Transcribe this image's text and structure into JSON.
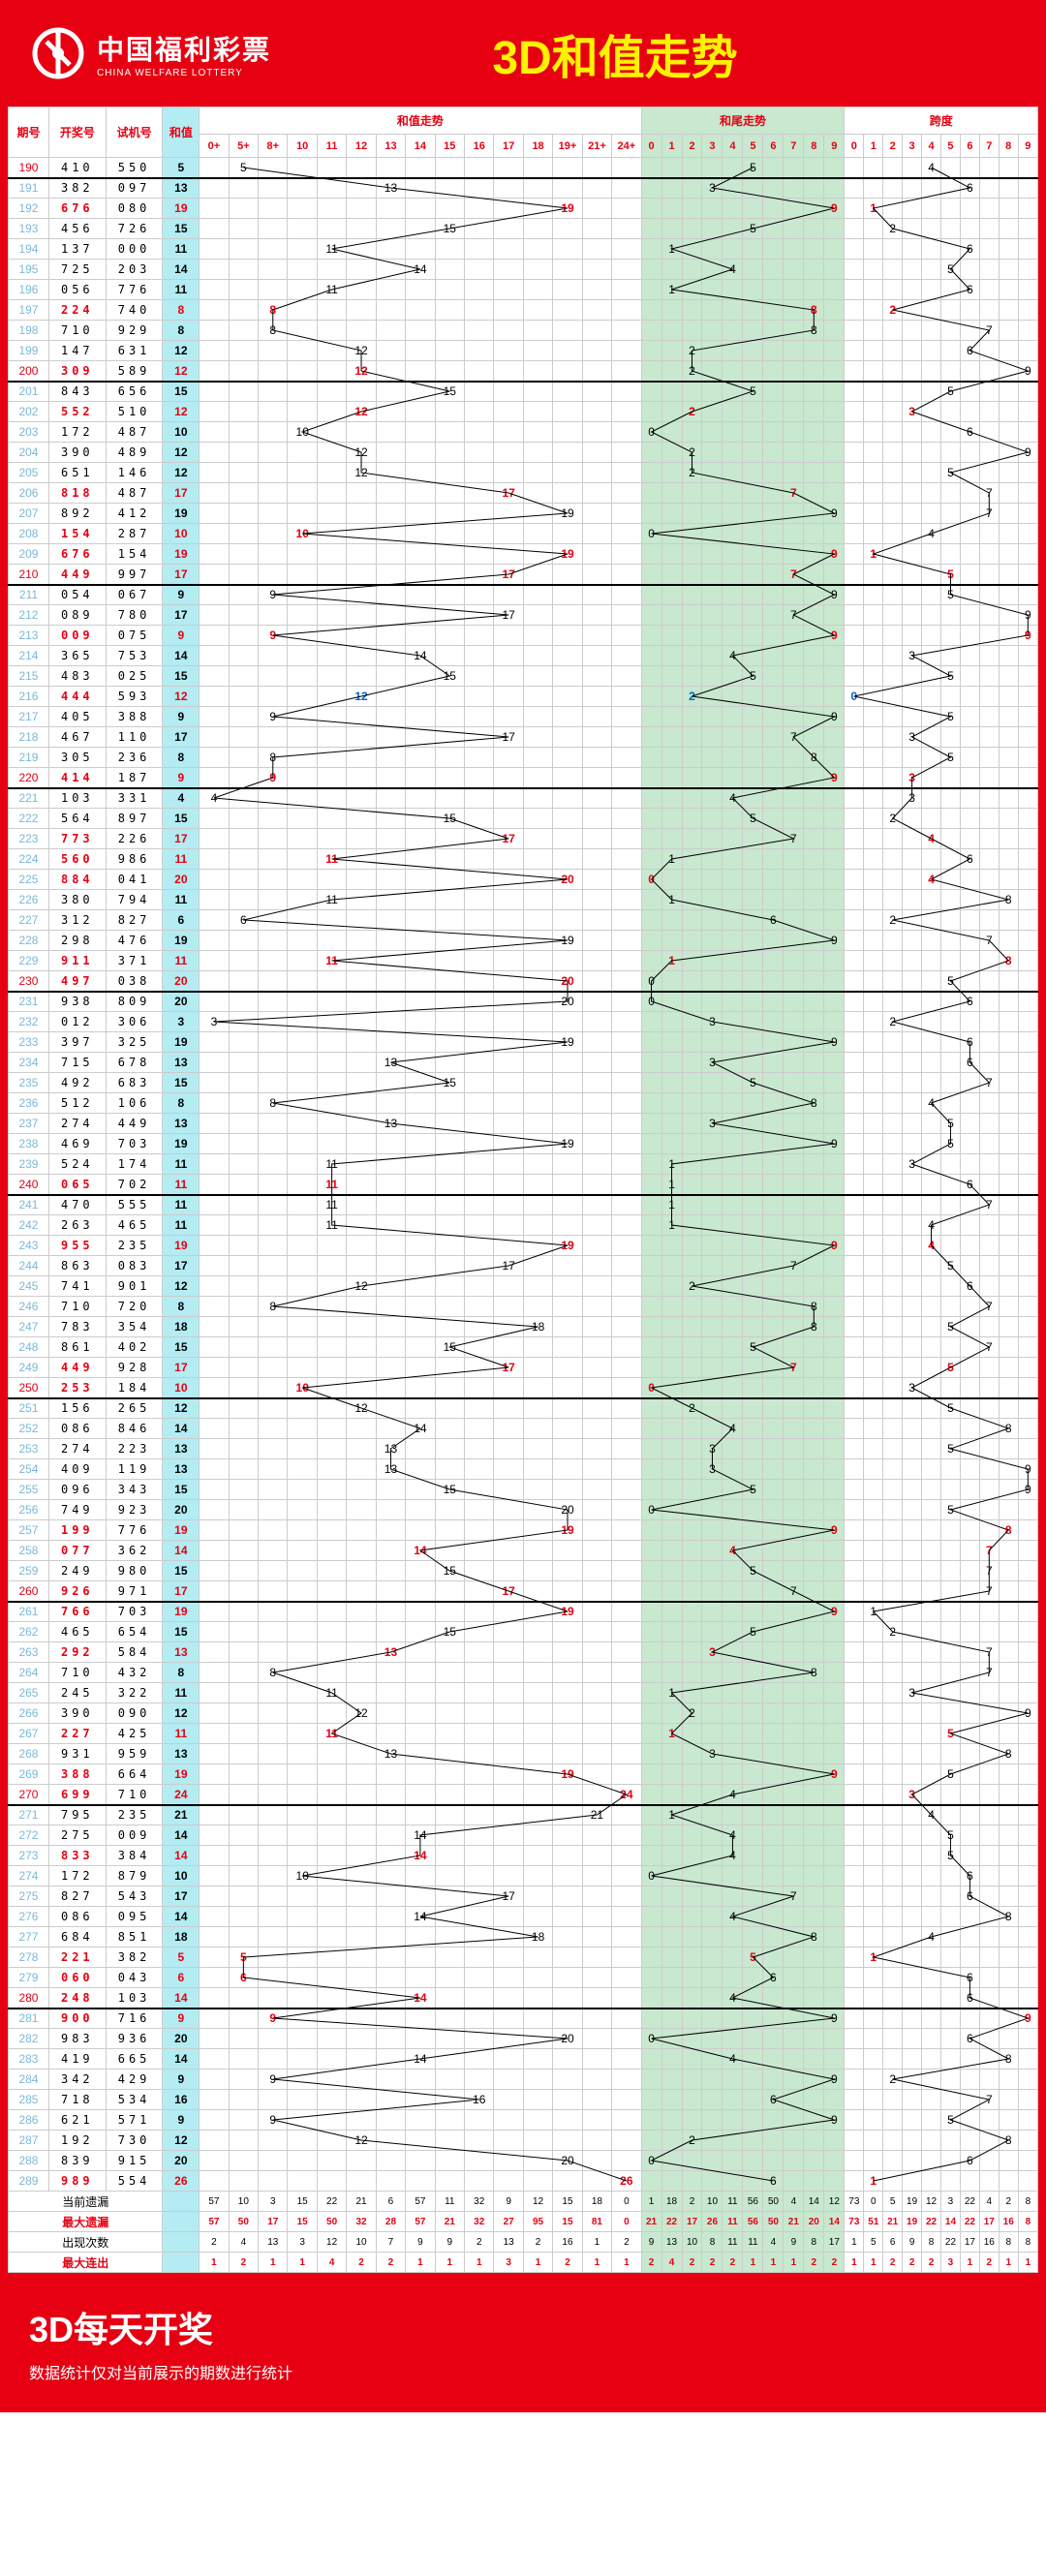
{
  "header": {
    "cn": "中国福利彩票",
    "en": "CHINA WELFARE LOTTERY",
    "title": "3D和值走势"
  },
  "cols": {
    "qh": "期号",
    "kj": "开奖号",
    "sj": "试机号",
    "hz": "和值",
    "trend": "和值走势",
    "tail": "和尾走势",
    "span": "跨度"
  },
  "trend_labels": [
    "0+",
    "5+",
    "8+",
    "10",
    "11",
    "12",
    "13",
    "14",
    "15",
    "16",
    "17",
    "18",
    "19+",
    "21+",
    "24+"
  ],
  "tail_labels": [
    "0",
    "1",
    "2",
    "3",
    "4",
    "5",
    "6",
    "7",
    "8",
    "9"
  ],
  "span_labels": [
    "0",
    "1",
    "2",
    "3",
    "4",
    "5",
    "6",
    "7",
    "8",
    "9"
  ],
  "rows": [
    {
      "q": "190",
      "k": "410",
      "s": "550",
      "h": 5,
      "t": 5,
      "p": 4,
      "hr": 0,
      "tr": 0,
      "pr": 0
    },
    {
      "q": "191",
      "k": "382",
      "s": "097",
      "h": 13,
      "t": 3,
      "p": 6,
      "hr": 0,
      "tr": 0,
      "pr": 0
    },
    {
      "q": "192",
      "k": "676",
      "s": "080",
      "h": 19,
      "t": 9,
      "p": 1,
      "hr": 1,
      "tr": 1,
      "pr": 1
    },
    {
      "q": "193",
      "k": "456",
      "s": "726",
      "h": 15,
      "t": 5,
      "p": 2,
      "hr": 0,
      "tr": 0,
      "pr": 0
    },
    {
      "q": "194",
      "k": "137",
      "s": "000",
      "h": 11,
      "t": 1,
      "p": 6,
      "hr": 0,
      "tr": 0,
      "pr": 0
    },
    {
      "q": "195",
      "k": "725",
      "s": "203",
      "h": 14,
      "t": 4,
      "p": 5,
      "hr": 0,
      "tr": 0,
      "pr": 0
    },
    {
      "q": "196",
      "k": "056",
      "s": "776",
      "h": 11,
      "t": 1,
      "p": 6,
      "hr": 0,
      "tr": 0,
      "pr": 0
    },
    {
      "q": "197",
      "k": "224",
      "s": "740",
      "h": 8,
      "t": 8,
      "p": 2,
      "hr": 1,
      "tr": 1,
      "pr": 1
    },
    {
      "q": "198",
      "k": "710",
      "s": "929",
      "h": 8,
      "t": 8,
      "p": 7,
      "hr": 0,
      "tr": 0,
      "pr": 0
    },
    {
      "q": "199",
      "k": "147",
      "s": "631",
      "h": 12,
      "t": 2,
      "p": 6,
      "hr": 0,
      "tr": 0,
      "pr": 0
    },
    {
      "q": "200",
      "k": "309",
      "s": "589",
      "h": 12,
      "t": 2,
      "p": 9,
      "hr": 1,
      "tr": 0,
      "pr": 0
    },
    {
      "q": "201",
      "k": "843",
      "s": "656",
      "h": 15,
      "t": 5,
      "p": 5,
      "hr": 0,
      "tr": 0,
      "pr": 0
    },
    {
      "q": "202",
      "k": "552",
      "s": "510",
      "h": 12,
      "t": 2,
      "p": 3,
      "hr": 1,
      "tr": 1,
      "pr": 1
    },
    {
      "q": "203",
      "k": "172",
      "s": "487",
      "h": 10,
      "t": 0,
      "p": 6,
      "hr": 0,
      "tr": 0,
      "pr": 0
    },
    {
      "q": "204",
      "k": "390",
      "s": "489",
      "h": 12,
      "t": 2,
      "p": 9,
      "hr": 0,
      "tr": 0,
      "pr": 0
    },
    {
      "q": "205",
      "k": "651",
      "s": "146",
      "h": 12,
      "t": 2,
      "p": 5,
      "hr": 0,
      "tr": 0,
      "pr": 0
    },
    {
      "q": "206",
      "k": "818",
      "s": "487",
      "h": 17,
      "t": 7,
      "p": 7,
      "hr": 1,
      "tr": 1,
      "pr": 0
    },
    {
      "q": "207",
      "k": "892",
      "s": "412",
      "h": 19,
      "t": 9,
      "p": 7,
      "hr": 0,
      "tr": 0,
      "pr": 0
    },
    {
      "q": "208",
      "k": "154",
      "s": "287",
      "h": 10,
      "t": 0,
      "p": 4,
      "hr": 1,
      "tr": 0,
      "pr": 0
    },
    {
      "q": "209",
      "k": "676",
      "s": "154",
      "h": 19,
      "t": 9,
      "p": 1,
      "hr": 1,
      "tr": 1,
      "pr": 1
    },
    {
      "q": "210",
      "k": "449",
      "s": "997",
      "h": 17,
      "t": 7,
      "p": 5,
      "hr": 1,
      "tr": 1,
      "pr": 1
    },
    {
      "q": "211",
      "k": "054",
      "s": "067",
      "h": 9,
      "t": 9,
      "p": 5,
      "hr": 0,
      "tr": 0,
      "pr": 0
    },
    {
      "q": "212",
      "k": "089",
      "s": "780",
      "h": 17,
      "t": 7,
      "p": 9,
      "hr": 0,
      "tr": 0,
      "pr": 0
    },
    {
      "q": "213",
      "k": "009",
      "s": "075",
      "h": 9,
      "t": 9,
      "p": 9,
      "hr": 1,
      "tr": 1,
      "pr": 1
    },
    {
      "q": "214",
      "k": "365",
      "s": "753",
      "h": 14,
      "t": 4,
      "p": 3,
      "hr": 0,
      "tr": 0,
      "pr": 0
    },
    {
      "q": "215",
      "k": "483",
      "s": "025",
      "h": 15,
      "t": 5,
      "p": 5,
      "hr": 0,
      "tr": 0,
      "pr": 0
    },
    {
      "q": "216",
      "k": "444",
      "s": "593",
      "h": 12,
      "t": 2,
      "p": 0,
      "hr": 2,
      "tr": 2,
      "pr": 2
    },
    {
      "q": "217",
      "k": "405",
      "s": "388",
      "h": 9,
      "t": 9,
      "p": 5,
      "hr": 0,
      "tr": 0,
      "pr": 0
    },
    {
      "q": "218",
      "k": "467",
      "s": "110",
      "h": 17,
      "t": 7,
      "p": 3,
      "hr": 0,
      "tr": 0,
      "pr": 0
    },
    {
      "q": "219",
      "k": "305",
      "s": "236",
      "h": 8,
      "t": 8,
      "p": 5,
      "hr": 0,
      "tr": 0,
      "pr": 0
    },
    {
      "q": "220",
      "k": "414",
      "s": "187",
      "h": 9,
      "t": 9,
      "p": 3,
      "hr": 1,
      "tr": 1,
      "pr": 1
    },
    {
      "q": "221",
      "k": "103",
      "s": "331",
      "h": 4,
      "t": 4,
      "p": 3,
      "hr": 0,
      "tr": 0,
      "pr": 0
    },
    {
      "q": "222",
      "k": "564",
      "s": "897",
      "h": 15,
      "t": 5,
      "p": 2,
      "hr": 0,
      "tr": 0,
      "pr": 0
    },
    {
      "q": "223",
      "k": "773",
      "s": "226",
      "h": 17,
      "t": 7,
      "p": 4,
      "hr": 1,
      "tr": 0,
      "pr": 1
    },
    {
      "q": "224",
      "k": "560",
      "s": "986",
      "h": 11,
      "t": 1,
      "p": 6,
      "hr": 1,
      "tr": 0,
      "pr": 0
    },
    {
      "q": "225",
      "k": "884",
      "s": "041",
      "h": 20,
      "t": 0,
      "p": 4,
      "hr": 1,
      "tr": 1,
      "pr": 1
    },
    {
      "q": "226",
      "k": "380",
      "s": "794",
      "h": 11,
      "t": 1,
      "p": 8,
      "hr": 0,
      "tr": 0,
      "pr": 0
    },
    {
      "q": "227",
      "k": "312",
      "s": "827",
      "h": 6,
      "t": 6,
      "p": 2,
      "hr": 0,
      "tr": 0,
      "pr": 0
    },
    {
      "q": "228",
      "k": "298",
      "s": "476",
      "h": 19,
      "t": 9,
      "p": 7,
      "hr": 0,
      "tr": 0,
      "pr": 0
    },
    {
      "q": "229",
      "k": "911",
      "s": "371",
      "h": 11,
      "t": 1,
      "p": 8,
      "hr": 1,
      "tr": 1,
      "pr": 1
    },
    {
      "q": "230",
      "k": "497",
      "s": "038",
      "h": 20,
      "t": 0,
      "p": 5,
      "hr": 1,
      "tr": 0,
      "pr": 0
    },
    {
      "q": "231",
      "k": "938",
      "s": "809",
      "h": 20,
      "t": 0,
      "p": 6,
      "hr": 0,
      "tr": 0,
      "pr": 0
    },
    {
      "q": "232",
      "k": "012",
      "s": "306",
      "h": 3,
      "t": 3,
      "p": 2,
      "hr": 0,
      "tr": 0,
      "pr": 0
    },
    {
      "q": "233",
      "k": "397",
      "s": "325",
      "h": 19,
      "t": 9,
      "p": 6,
      "hr": 0,
      "tr": 0,
      "pr": 0
    },
    {
      "q": "234",
      "k": "715",
      "s": "678",
      "h": 13,
      "t": 3,
      "p": 6,
      "hr": 0,
      "tr": 0,
      "pr": 0
    },
    {
      "q": "235",
      "k": "492",
      "s": "683",
      "h": 15,
      "t": 5,
      "p": 7,
      "hr": 0,
      "tr": 0,
      "pr": 0
    },
    {
      "q": "236",
      "k": "512",
      "s": "106",
      "h": 8,
      "t": 8,
      "p": 4,
      "hr": 0,
      "tr": 0,
      "pr": 0
    },
    {
      "q": "237",
      "k": "274",
      "s": "449",
      "h": 13,
      "t": 3,
      "p": 5,
      "hr": 0,
      "tr": 0,
      "pr": 0
    },
    {
      "q": "238",
      "k": "469",
      "s": "703",
      "h": 19,
      "t": 9,
      "p": 5,
      "hr": 0,
      "tr": 0,
      "pr": 0
    },
    {
      "q": "239",
      "k": "524",
      "s": "174",
      "h": 11,
      "t": 1,
      "p": 3,
      "hr": 0,
      "tr": 0,
      "pr": 0
    },
    {
      "q": "240",
      "k": "065",
      "s": "702",
      "h": 11,
      "t": 1,
      "p": 6,
      "hr": 1,
      "tr": 0,
      "pr": 0
    },
    {
      "q": "241",
      "k": "470",
      "s": "555",
      "h": 11,
      "t": 1,
      "p": 7,
      "hr": 0,
      "tr": 0,
      "pr": 0
    },
    {
      "q": "242",
      "k": "263",
      "s": "465",
      "h": 11,
      "t": 1,
      "p": 4,
      "hr": 0,
      "tr": 0,
      "pr": 0
    },
    {
      "q": "243",
      "k": "955",
      "s": "235",
      "h": 19,
      "t": 9,
      "p": 4,
      "hr": 1,
      "tr": 1,
      "pr": 1
    },
    {
      "q": "244",
      "k": "863",
      "s": "083",
      "h": 17,
      "t": 7,
      "p": 5,
      "hr": 0,
      "tr": 0,
      "pr": 0
    },
    {
      "q": "245",
      "k": "741",
      "s": "901",
      "h": 12,
      "t": 2,
      "p": 6,
      "hr": 0,
      "tr": 0,
      "pr": 0
    },
    {
      "q": "246",
      "k": "710",
      "s": "720",
      "h": 8,
      "t": 8,
      "p": 7,
      "hr": 0,
      "tr": 0,
      "pr": 0
    },
    {
      "q": "247",
      "k": "783",
      "s": "354",
      "h": 18,
      "t": 8,
      "p": 5,
      "hr": 0,
      "tr": 0,
      "pr": 0
    },
    {
      "q": "248",
      "k": "861",
      "s": "402",
      "h": 15,
      "t": 5,
      "p": 7,
      "hr": 0,
      "tr": 0,
      "pr": 0
    },
    {
      "q": "249",
      "k": "449",
      "s": "928",
      "h": 17,
      "t": 7,
      "p": 5,
      "hr": 1,
      "tr": 1,
      "pr": 1
    },
    {
      "q": "250",
      "k": "253",
      "s": "184",
      "h": 10,
      "t": 0,
      "p": 3,
      "hr": 1,
      "tr": 1,
      "pr": 0
    },
    {
      "q": "251",
      "k": "156",
      "s": "265",
      "h": 12,
      "t": 2,
      "p": 5,
      "hr": 0,
      "tr": 0,
      "pr": 0
    },
    {
      "q": "252",
      "k": "086",
      "s": "846",
      "h": 14,
      "t": 4,
      "p": 8,
      "hr": 0,
      "tr": 0,
      "pr": 0
    },
    {
      "q": "253",
      "k": "274",
      "s": "223",
      "h": 13,
      "t": 3,
      "p": 5,
      "hr": 0,
      "tr": 0,
      "pr": 0
    },
    {
      "q": "254",
      "k": "409",
      "s": "119",
      "h": 13,
      "t": 3,
      "p": 9,
      "hr": 0,
      "tr": 0,
      "pr": 0
    },
    {
      "q": "255",
      "k": "096",
      "s": "343",
      "h": 15,
      "t": 5,
      "p": 9,
      "hr": 0,
      "tr": 0,
      "pr": 0
    },
    {
      "q": "256",
      "k": "749",
      "s": "923",
      "h": 20,
      "t": 0,
      "p": 5,
      "hr": 0,
      "tr": 0,
      "pr": 0
    },
    {
      "q": "257",
      "k": "199",
      "s": "776",
      "h": 19,
      "t": 9,
      "p": 8,
      "hr": 1,
      "tr": 1,
      "pr": 1
    },
    {
      "q": "258",
      "k": "077",
      "s": "362",
      "h": 14,
      "t": 4,
      "p": 7,
      "hr": 1,
      "tr": 1,
      "pr": 1
    },
    {
      "q": "259",
      "k": "249",
      "s": "980",
      "h": 15,
      "t": 5,
      "p": 7,
      "hr": 0,
      "tr": 0,
      "pr": 0
    },
    {
      "q": "260",
      "k": "926",
      "s": "971",
      "h": 17,
      "t": 7,
      "p": 7,
      "hr": 1,
      "tr": 0,
      "pr": 0
    },
    {
      "q": "261",
      "k": "766",
      "s": "703",
      "h": 19,
      "t": 9,
      "p": 1,
      "hr": 1,
      "tr": 1,
      "pr": 0
    },
    {
      "q": "262",
      "k": "465",
      "s": "654",
      "h": 15,
      "t": 5,
      "p": 2,
      "hr": 0,
      "tr": 0,
      "pr": 0
    },
    {
      "q": "263",
      "k": "292",
      "s": "584",
      "h": 13,
      "t": 3,
      "p": 7,
      "hr": 1,
      "tr": 1,
      "pr": 0
    },
    {
      "q": "264",
      "k": "710",
      "s": "432",
      "h": 8,
      "t": 8,
      "p": 7,
      "hr": 0,
      "tr": 0,
      "pr": 0
    },
    {
      "q": "265",
      "k": "245",
      "s": "322",
      "h": 11,
      "t": 1,
      "p": 3,
      "hr": 0,
      "tr": 0,
      "pr": 0
    },
    {
      "q": "266",
      "k": "390",
      "s": "090",
      "h": 12,
      "t": 2,
      "p": 9,
      "hr": 0,
      "tr": 0,
      "pr": 0
    },
    {
      "q": "267",
      "k": "227",
      "s": "425",
      "h": 11,
      "t": 1,
      "p": 5,
      "hr": 1,
      "tr": 1,
      "pr": 1
    },
    {
      "q": "268",
      "k": "931",
      "s": "959",
      "h": 13,
      "t": 3,
      "p": 8,
      "hr": 0,
      "tr": 0,
      "pr": 0
    },
    {
      "q": "269",
      "k": "388",
      "s": "664",
      "h": 19,
      "t": 9,
      "p": 5,
      "hr": 1,
      "tr": 1,
      "pr": 0
    },
    {
      "q": "270",
      "k": "699",
      "s": "710",
      "h": 24,
      "t": 4,
      "p": 3,
      "hr": 1,
      "tr": 0,
      "pr": 1
    },
    {
      "q": "271",
      "k": "795",
      "s": "235",
      "h": 21,
      "t": 1,
      "p": 4,
      "hr": 0,
      "tr": 0,
      "pr": 0
    },
    {
      "q": "272",
      "k": "275",
      "s": "009",
      "h": 14,
      "t": 4,
      "p": 5,
      "hr": 0,
      "tr": 0,
      "pr": 0
    },
    {
      "q": "273",
      "k": "833",
      "s": "384",
      "h": 14,
      "t": 4,
      "p": 5,
      "hr": 1,
      "tr": 0,
      "pr": 0
    },
    {
      "q": "274",
      "k": "172",
      "s": "879",
      "h": 10,
      "t": 0,
      "p": 6,
      "hr": 0,
      "tr": 0,
      "pr": 0
    },
    {
      "q": "275",
      "k": "827",
      "s": "543",
      "h": 17,
      "t": 7,
      "p": 6,
      "hr": 0,
      "tr": 0,
      "pr": 0
    },
    {
      "q": "276",
      "k": "086",
      "s": "095",
      "h": 14,
      "t": 4,
      "p": 8,
      "hr": 0,
      "tr": 0,
      "pr": 0
    },
    {
      "q": "277",
      "k": "684",
      "s": "851",
      "h": 18,
      "t": 8,
      "p": 4,
      "hr": 0,
      "tr": 0,
      "pr": 0
    },
    {
      "q": "278",
      "k": "221",
      "s": "382",
      "h": 5,
      "t": 5,
      "p": 1,
      "hr": 1,
      "tr": 1,
      "pr": 1
    },
    {
      "q": "279",
      "k": "060",
      "s": "043",
      "h": 6,
      "t": 6,
      "p": 6,
      "hr": 1,
      "tr": 0,
      "pr": 0
    },
    {
      "q": "280",
      "k": "248",
      "s": "103",
      "h": 14,
      "t": 4,
      "p": 6,
      "hr": 1,
      "tr": 0,
      "pr": 0
    },
    {
      "q": "281",
      "k": "900",
      "s": "716",
      "h": 9,
      "t": 9,
      "p": 9,
      "hr": 1,
      "tr": 0,
      "pr": 1
    },
    {
      "q": "282",
      "k": "983",
      "s": "936",
      "h": 20,
      "t": 0,
      "p": 6,
      "hr": 0,
      "tr": 0,
      "pr": 0
    },
    {
      "q": "283",
      "k": "419",
      "s": "665",
      "h": 14,
      "t": 4,
      "p": 8,
      "hr": 0,
      "tr": 0,
      "pr": 0
    },
    {
      "q": "284",
      "k": "342",
      "s": "429",
      "h": 9,
      "t": 9,
      "p": 2,
      "hr": 0,
      "tr": 0,
      "pr": 0
    },
    {
      "q": "285",
      "k": "718",
      "s": "534",
      "h": 16,
      "t": 6,
      "p": 7,
      "hr": 0,
      "tr": 0,
      "pr": 0
    },
    {
      "q": "286",
      "k": "621",
      "s": "571",
      "h": 9,
      "t": 9,
      "p": 5,
      "hr": 0,
      "tr": 0,
      "pr": 0
    },
    {
      "q": "287",
      "k": "192",
      "s": "730",
      "h": 12,
      "t": 2,
      "p": 8,
      "hr": 0,
      "tr": 0,
      "pr": 0
    },
    {
      "q": "288",
      "k": "839",
      "s": "915",
      "h": 20,
      "t": 0,
      "p": 6,
      "hr": 0,
      "tr": 0,
      "pr": 0
    },
    {
      "q": "289",
      "k": "989",
      "s": "554",
      "h": 26,
      "t": 6,
      "p": 1,
      "hr": 1,
      "tr": 0,
      "pr": 1
    }
  ],
  "stats": {
    "labels": [
      "当前遗漏",
      "最大遗漏",
      "出现次数",
      "最大连出"
    ],
    "trend": [
      [
        57,
        10,
        3,
        15,
        22,
        21,
        6,
        57,
        11,
        32,
        9,
        12,
        15,
        18,
        0
      ],
      [
        57,
        50,
        17,
        15,
        50,
        32,
        28,
        57,
        21,
        32,
        27,
        95,
        15,
        81,
        0
      ],
      [
        2,
        4,
        13,
        3,
        12,
        10,
        7,
        9,
        9,
        2,
        13,
        2,
        16,
        1,
        2
      ],
      [
        1,
        2,
        1,
        1,
        4,
        2,
        2,
        1,
        1,
        1,
        3,
        1,
        2,
        1,
        1
      ]
    ],
    "tail": [
      [
        1,
        18,
        2,
        10,
        11,
        56,
        50,
        4,
        14,
        12
      ],
      [
        21,
        22,
        17,
        26,
        11,
        56,
        50,
        21,
        20,
        14
      ],
      [
        9,
        13,
        10,
        8,
        11,
        11,
        4,
        9,
        8,
        17
      ],
      [
        2,
        4,
        2,
        2,
        2,
        1,
        1,
        1,
        2,
        2
      ]
    ],
    "span": [
      [
        73,
        0,
        5,
        19,
        12,
        3,
        22,
        4,
        2,
        8
      ],
      [
        73,
        51,
        21,
        19,
        22,
        14,
        22,
        17,
        16,
        8
      ],
      [
        1,
        5,
        6,
        9,
        8,
        22,
        17,
        16,
        8,
        8
      ],
      [
        1,
        1,
        2,
        2,
        2,
        3,
        1,
        2,
        1,
        1
      ]
    ]
  },
  "footer": {
    "t": "3D每天开奖",
    "s": "数据统计仅对当前展示的期数进行统计"
  },
  "colors": {
    "red": "#e60012",
    "blue": "#0066cc",
    "cyan": "#b3ecf2",
    "green": "#c8e8d0",
    "yellow": "#fff200"
  }
}
